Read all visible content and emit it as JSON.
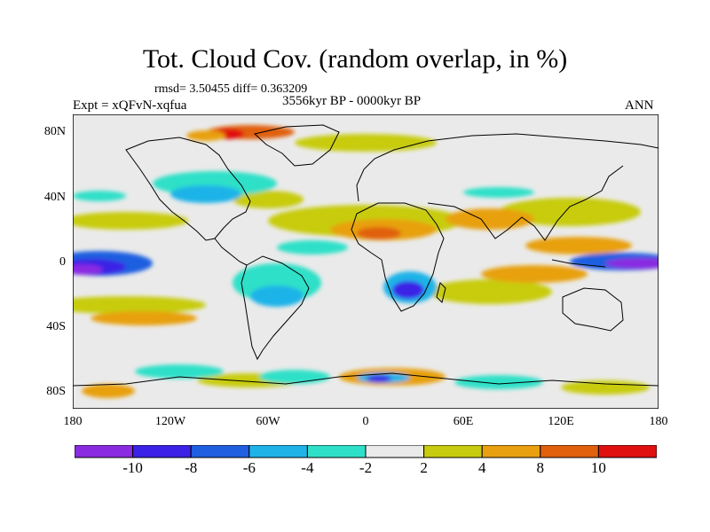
{
  "title": "Tot. Cloud Cov. (random overlap, in %)",
  "stats": "rmsd= 3.50455  diff= 0.363209",
  "left_label": "Expt = xQFvN-xqfua",
  "center_label": "3556kyr BP - 0000kyr BP",
  "right_label": "ANN",
  "chart_data": {
    "type": "heatmap",
    "xlim": [
      -180,
      180
    ],
    "ylim": [
      -90,
      90
    ],
    "x_ticks": [
      "180",
      "120W",
      "60W",
      "0",
      "60E",
      "120E",
      "180"
    ],
    "y_ticks": [
      "80N",
      "40N",
      "0",
      "40S",
      "80S"
    ],
    "colorbar": {
      "labels": [
        "-10",
        "-8",
        "-6",
        "-4",
        "-2",
        "2",
        "4",
        "8",
        "10"
      ],
      "colors": [
        "#8a2be2",
        "#3b22e6",
        "#1f5fe0",
        "#1fb3e8",
        "#2fe0c8",
        "#eaeaea",
        "#c8cc10",
        "#e8a010",
        "#e0600c",
        "#e01010"
      ]
    },
    "anomaly_regions": [
      {
        "region": "Eastern tropical Pacific (south of equator)",
        "value": -10
      },
      {
        "region": "Western tropical Pacific (equatorial)",
        "value": -10
      },
      {
        "region": "Southern Africa",
        "value": -10
      },
      {
        "region": "Southern Ocean near 70S, 0-40E",
        "value": -10
      },
      {
        "region": "South America",
        "value": -4
      },
      {
        "region": "North Atlantic / western Europe",
        "value": -4
      },
      {
        "region": "Central North Pacific",
        "value": -4
      },
      {
        "region": "Sahara / North Africa",
        "value": 8
      },
      {
        "region": "Arabia and South Asia",
        "value": 8
      },
      {
        "region": "Greenland",
        "value": 10
      },
      {
        "region": "Subtropical North Pacific",
        "value": 8
      },
      {
        "region": "Tropical Indian Ocean",
        "value": 4
      },
      {
        "region": "Equatorial Atlantic",
        "value": 4
      },
      {
        "region": "Antarctic coast",
        "value": 4
      }
    ]
  }
}
